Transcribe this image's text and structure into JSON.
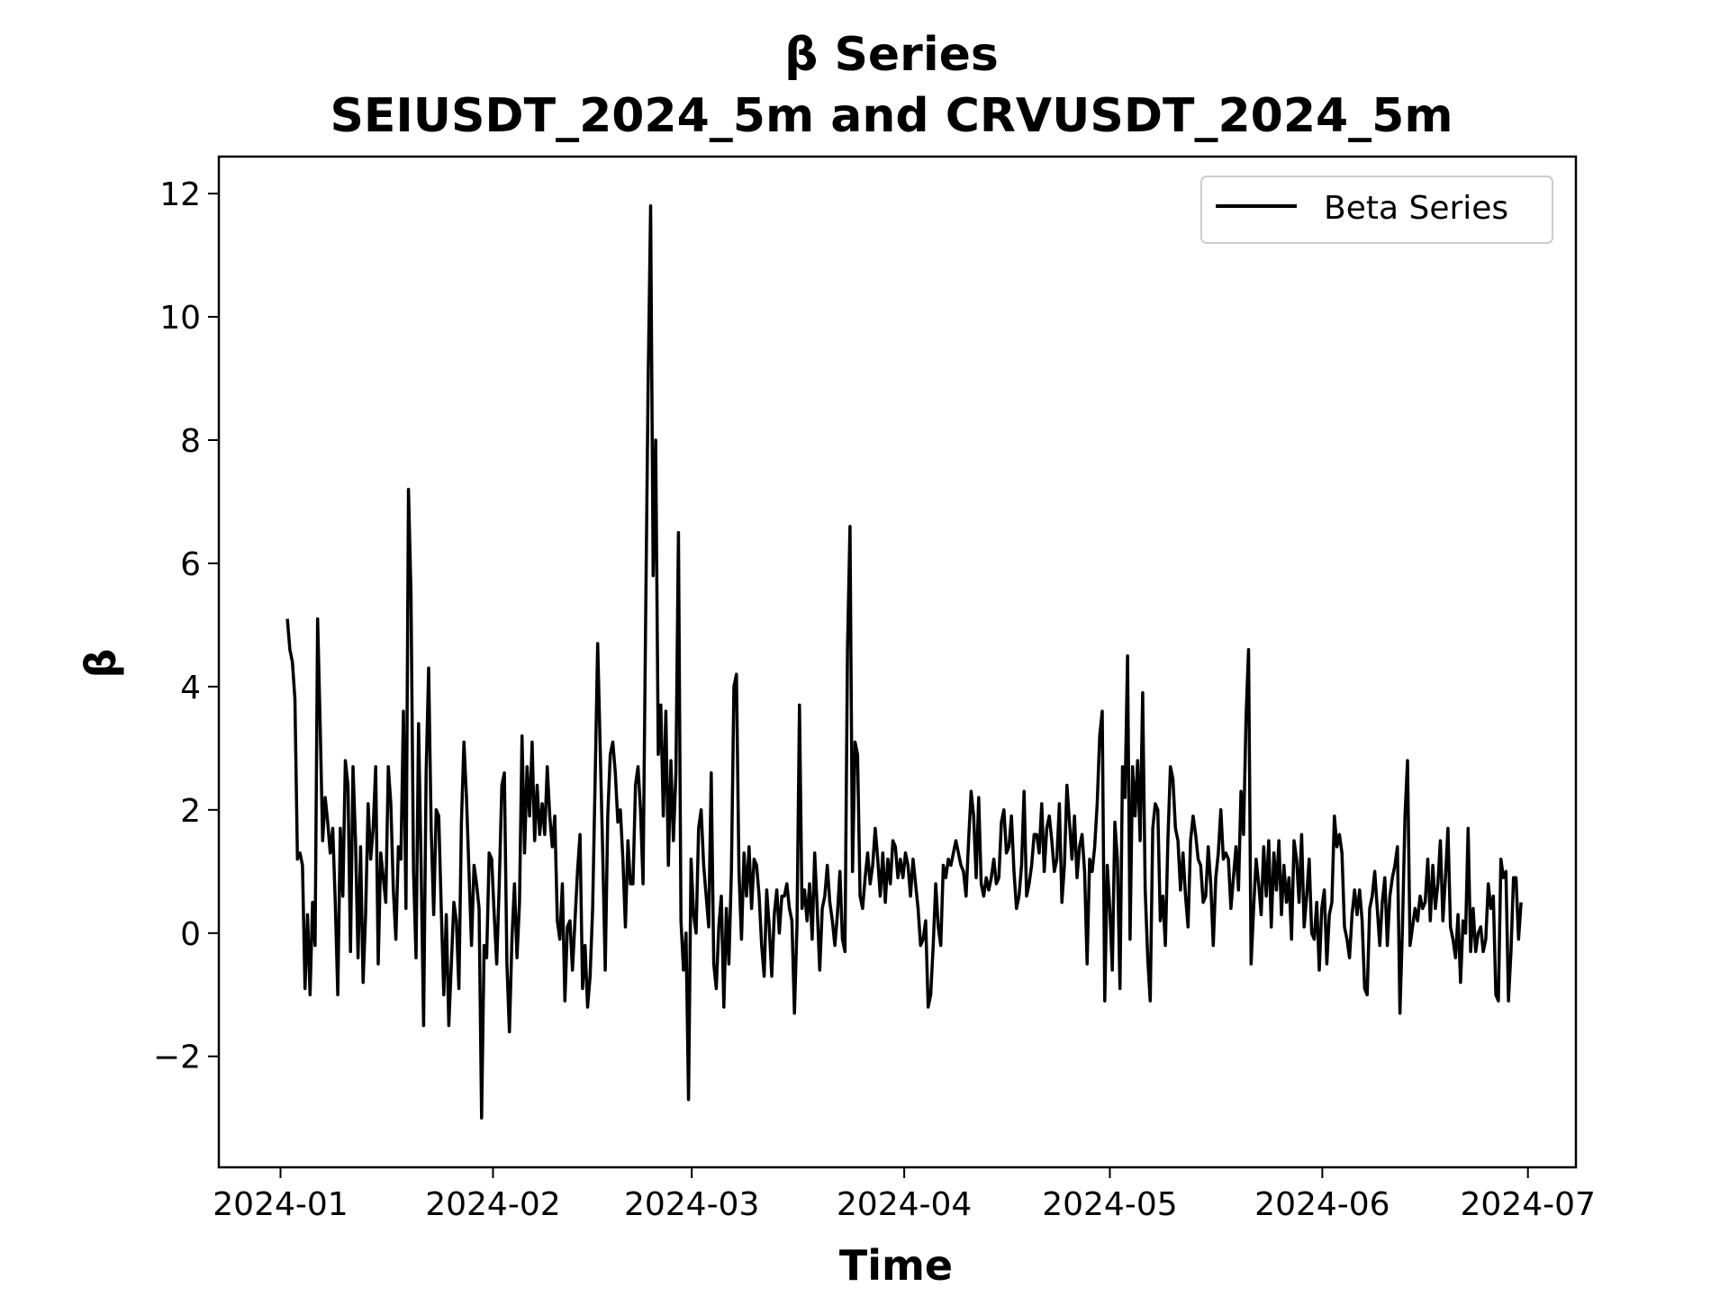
{
  "chart_data": {
    "type": "line",
    "title": "β Series",
    "subtitle": "SEIUSDT_2024_5m and CRVUSDT_2024_5m",
    "xlabel": "Time",
    "ylabel": "β",
    "x_ticks": [
      "2024-01",
      "2024-02",
      "2024-03",
      "2024-04",
      "2024-05",
      "2024-06",
      "2024-07"
    ],
    "y_ticks": [
      "−2",
      "0",
      "2",
      "4",
      "6",
      "8",
      "10",
      "12"
    ],
    "xlim": [
      "2023-12-23",
      "2024-07-08"
    ],
    "ylim": [
      -3.8,
      12.6
    ],
    "grid": false,
    "legend": {
      "position": "upper-right",
      "entries": [
        "Beta Series"
      ]
    },
    "colors": {
      "line": "#000000",
      "legend_border": "#cccccc"
    },
    "series": [
      {
        "name": "Beta Series",
        "x_start": "2024-01-02",
        "x_end": "2024-06-30",
        "values": [
          5.1,
          4.6,
          4.4,
          3.8,
          1.2,
          1.3,
          1.1,
          -0.9,
          0.3,
          -1.0,
          0.5,
          -0.2,
          5.1,
          3.4,
          1.5,
          2.2,
          1.8,
          1.3,
          1.7,
          0.5,
          -1.0,
          1.7,
          0.6,
          2.8,
          2.4,
          -0.3,
          2.7,
          1.5,
          -0.4,
          1.4,
          -0.8,
          0.3,
          2.1,
          1.2,
          1.7,
          2.7,
          -0.5,
          1.3,
          0.9,
          0.5,
          2.7,
          2.1,
          0.7,
          -0.1,
          1.4,
          1.2,
          3.6,
          0.4,
          7.2,
          5.5,
          1.0,
          -0.4,
          3.4,
          1.1,
          -1.5,
          2.6,
          4.3,
          1.7,
          0.3,
          2.0,
          1.9,
          0.4,
          -1.0,
          0.3,
          -1.5,
          -0.5,
          0.5,
          0.2,
          -0.9,
          1.8,
          3.1,
          2.2,
          1.0,
          -0.2,
          1.1,
          0.8,
          0.4,
          -3.0,
          -0.2,
          -0.4,
          1.3,
          1.2,
          0.3,
          -0.5,
          0.8,
          2.4,
          2.6,
          -0.5,
          -1.6,
          -0.1,
          0.8,
          -0.4,
          0.5,
          3.2,
          1.3,
          2.7,
          1.9,
          3.1,
          1.5,
          2.4,
          1.6,
          2.1,
          1.6,
          2.7,
          1.9,
          1.4,
          1.9,
          0.2,
          -0.1,
          0.8,
          -1.1,
          0.1,
          0.2,
          -0.6,
          0.2,
          1.0,
          1.6,
          -0.9,
          -0.2,
          -1.2,
          -0.7,
          0.4,
          2.5,
          4.7,
          3.0,
          1.3,
          -0.6,
          1.9,
          2.9,
          3.1,
          2.6,
          1.8,
          2.0,
          1.2,
          0.1,
          1.5,
          0.8,
          0.8,
          2.4,
          2.7,
          2.0,
          0.8,
          5.0,
          8.9,
          11.8,
          5.8,
          8.0,
          2.9,
          3.7,
          1.9,
          3.6,
          1.1,
          2.8,
          1.5,
          2.6,
          6.5,
          0.2,
          -0.6,
          0.0,
          -2.7,
          1.2,
          0.3,
          0.0,
          1.7,
          2.0,
          1.1,
          0.6,
          0.1,
          2.6,
          -0.5,
          -0.9,
          0.1,
          0.6,
          -1.2,
          0.4,
          -0.5,
          1.0,
          4.0,
          4.2,
          1.0,
          -0.1,
          1.3,
          0.6,
          1.4,
          0.4,
          1.2,
          1.1,
          0.6,
          -0.2,
          -0.7,
          0.7,
          0.1,
          -0.7,
          0.3,
          0.7,
          0.0,
          0.6,
          0.6,
          0.8,
          0.4,
          0.2,
          -1.3,
          0.1,
          3.7,
          0.4,
          0.7,
          0.2,
          0.8,
          -0.1,
          1.3,
          0.4,
          -0.6,
          0.4,
          0.6,
          1.1,
          0.5,
          0.2,
          -0.2,
          0.3,
          1.0,
          -0.1,
          -0.3,
          4.6,
          6.6,
          1.0,
          3.1,
          2.9,
          0.6,
          0.4,
          0.9,
          1.3,
          0.8,
          1.1,
          1.7,
          1.2,
          0.6,
          1.3,
          0.5,
          1.2,
          0.8,
          1.5,
          1.4,
          0.9,
          1.2,
          0.9,
          1.3,
          1.1,
          0.6,
          1.2,
          0.8,
          0.4,
          -0.2,
          -0.1,
          0.2,
          -1.2,
          -1.0,
          -0.2,
          0.8,
          0.1,
          -0.2,
          1.1,
          0.9,
          1.2,
          1.1,
          1.3,
          1.5,
          1.3,
          1.1,
          1.0,
          0.6,
          1.5,
          2.3,
          1.9,
          0.9,
          2.2,
          0.8,
          0.6,
          0.9,
          0.7,
          0.9,
          1.2,
          0.8,
          0.9,
          1.8,
          2.0,
          1.3,
          1.4,
          1.9,
          1.0,
          0.4,
          0.6,
          1.1,
          2.3,
          0.6,
          0.8,
          1.1,
          1.6,
          1.6,
          1.3,
          2.1,
          1.0,
          1.7,
          1.9,
          1.5,
          1.0,
          1.2,
          2.1,
          0.5,
          1.1,
          2.4,
          1.8,
          1.2,
          1.9,
          0.9,
          1.4,
          1.6,
          1.0,
          -0.5,
          1.2,
          1.0,
          1.4,
          2.1,
          3.2,
          3.6,
          -1.1,
          1.1,
          0.4,
          -0.6,
          1.8,
          1.2,
          -0.9,
          2.7,
          2.2,
          4.5,
          -0.1,
          2.7,
          1.9,
          2.8,
          1.5,
          3.9,
          0.7,
          -0.4,
          -1.1,
          1.7,
          2.1,
          2.0,
          0.2,
          0.6,
          -0.2,
          1.5,
          2.7,
          2.5,
          1.7,
          1.5,
          0.7,
          1.3,
          0.6,
          0.1,
          1.5,
          1.9,
          1.6,
          1.2,
          1.1,
          0.5,
          0.6,
          1.4,
          0.8,
          -0.2,
          0.9,
          1.3,
          2.0,
          1.2,
          1.3,
          1.2,
          0.4,
          0.9,
          1.4,
          0.7,
          2.3,
          1.6,
          3.5,
          4.6,
          -0.5,
          0.4,
          1.2,
          0.8,
          0.3,
          1.4,
          0.6,
          1.5,
          0.1,
          1.3,
          0.7,
          1.5,
          0.3,
          1.1,
          0.5,
          0.9,
          -0.1,
          1.5,
          1.2,
          0.5,
          1.6,
          0.1,
          0.6,
          1.2,
          0.0,
          -0.1,
          0.5,
          -0.6,
          0.4,
          0.7,
          -0.5,
          0.3,
          0.5,
          1.9,
          1.4,
          1.6,
          1.3,
          0.1,
          -0.1,
          -0.4,
          0.3,
          0.7,
          0.3,
          0.7,
          0.2,
          -0.9,
          -1.0,
          0.4,
          0.6,
          1.0,
          0.4,
          -0.2,
          0.5,
          0.9,
          -0.2,
          0.6,
          0.9,
          1.1,
          1.4,
          -1.3,
          0.1,
          1.9,
          2.8,
          -0.2,
          0.1,
          0.4,
          0.2,
          0.6,
          0.4,
          0.5,
          1.2,
          0.2,
          1.1,
          0.4,
          0.8,
          1.5,
          0.2,
          0.9,
          1.7,
          0.1,
          -0.1,
          -0.4,
          0.3,
          -0.8,
          0.2,
          0.0,
          1.7,
          -0.3,
          0.4,
          -0.3,
          0.0,
          0.1,
          -0.3,
          -0.1,
          0.8,
          0.4,
          0.6,
          -1.0,
          -1.1,
          1.2,
          0.9,
          1.0,
          -1.1,
          -0.3,
          0.9,
          0.9,
          -0.1,
          0.5
        ]
      }
    ]
  }
}
